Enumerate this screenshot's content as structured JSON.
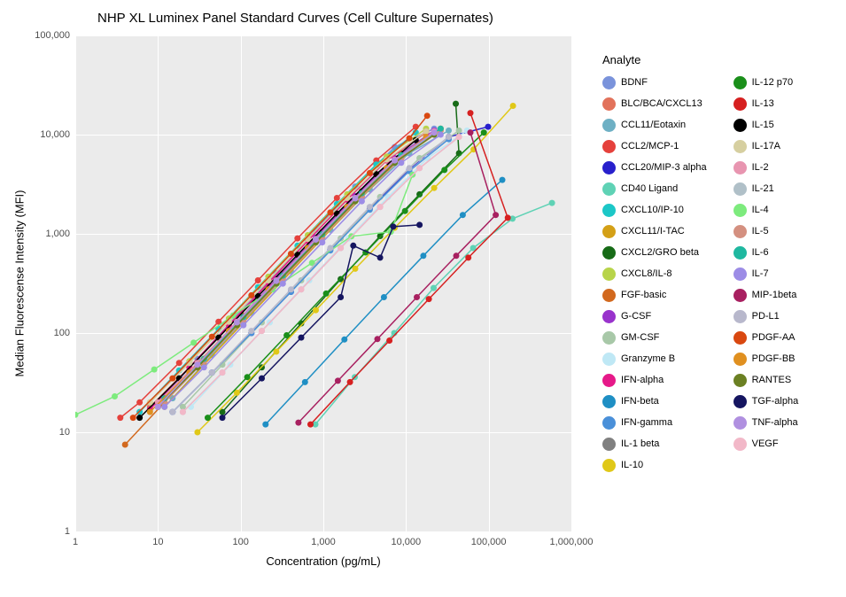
{
  "title": "NHP XL Luminex Panel Standard Curves (Cell Culture Supernates)",
  "xlabel": "Concentration (pg/mL)",
  "ylabel": "Median Fluorescense Intensity (MFI)",
  "legend_title": "Analyte",
  "type": "line+scatter",
  "xscale": "log10",
  "yscale": "log10",
  "xlim": [
    1,
    1000000
  ],
  "ylim": [
    1,
    100000
  ],
  "panel_bg": "#ebebeb",
  "grid_color": "#ffffff",
  "point_radius": 3.5,
  "line_width": 1.5,
  "title_fontsize": 15,
  "label_fontsize": 13,
  "tick_fontsize": 11,
  "legend_fontsize": 11,
  "xticks": [
    {
      "v": 1,
      "label": "1"
    },
    {
      "v": 10,
      "label": "10"
    },
    {
      "v": 100,
      "label": "100"
    },
    {
      "v": 1000,
      "label": "1,000"
    },
    {
      "v": 10000,
      "label": "10,000"
    },
    {
      "v": 100000,
      "label": "100,000"
    },
    {
      "v": 1000000,
      "label": "1,000,000"
    }
  ],
  "yticks": [
    {
      "v": 1,
      "label": "1"
    },
    {
      "v": 10,
      "label": "10"
    },
    {
      "v": 100,
      "label": "100"
    },
    {
      "v": 1000,
      "label": "1,000"
    },
    {
      "v": 10000,
      "label": "10,000"
    },
    {
      "v": 100000,
      "label": "100,000"
    }
  ],
  "legend_columns": [
    [
      "BDNF",
      "BLC/BCA/CXCL13",
      "CCL11/Eotaxin",
      "CCL2/MCP-1",
      "CCL20/MIP-3 alpha",
      "CD40 Ligand",
      "CXCL10/IP-10",
      "CXCL11/I-TAC",
      "CXCL2/GRO beta",
      "CXCL8/IL-8",
      "FGF-basic",
      "G-CSF",
      "GM-CSF",
      "Granzyme B",
      "IFN-alpha",
      "IFN-beta",
      "IFN-gamma",
      "IL-1 beta",
      "IL-10"
    ],
    [
      "IL-12 p70",
      "IL-13",
      "IL-15",
      "IL-17A",
      "IL-2",
      "IL-21",
      "IL-4",
      "IL-5",
      "IL-6",
      "IL-7",
      "MIP-1beta",
      "PD-L1",
      "PDGF-AA",
      "PDGF-BB",
      "RANTES",
      "TGF-alpha",
      "TNF-alpha",
      "VEGF"
    ]
  ],
  "colors": {
    "BDNF": "#7a93db",
    "BLC/BCA/CXCL13": "#e2725b",
    "CCL11/Eotaxin": "#6eb0c4",
    "CCL2/MCP-1": "#e5413c",
    "CCL20/MIP-3 alpha": "#2820cc",
    "CD40 Ligand": "#5fd2b5",
    "CXCL10/IP-10": "#1cc7c7",
    "CXCL11/I-TAC": "#d4a017",
    "CXCL2/GRO beta": "#176b17",
    "CXCL8/IL-8": "#b8d44a",
    "FGF-basic": "#d2691e",
    "G-CSF": "#9933cc",
    "GM-CSF": "#a8c8a8",
    "Granzyme B": "#bfe8f5",
    "IFN-alpha": "#e61989",
    "IFN-beta": "#1f8fc4",
    "IFN-gamma": "#4a90d9",
    "IL-1 beta": "#808080",
    "IL-10": "#e0c818",
    "IL-12 p70": "#1a8f1a",
    "IL-13": "#d62020",
    "IL-15": "#000000",
    "IL-17A": "#d6cfa0",
    "IL-2": "#e895b0",
    "IL-21": "#b0c0c8",
    "IL-4": "#7deb7d",
    "IL-5": "#d49080",
    "IL-6": "#1fb8a0",
    "IL-7": "#9c8ce6",
    "MIP-1beta": "#a82060",
    "PD-L1": "#b8b8cc",
    "PDGF-AA": "#d94810",
    "PDGF-BB": "#e09020",
    "RANTES": "#6b8023",
    "TGF-alpha": "#151560",
    "TNF-alpha": "#b090e0",
    "VEGF": "#f2b8c8"
  },
  "series": {
    "BDNF": [
      [
        10,
        20
      ],
      [
        30,
        55
      ],
      [
        90,
        150
      ],
      [
        270,
        400
      ],
      [
        810,
        1100
      ],
      [
        2430,
        3000
      ],
      [
        7290,
        7500
      ],
      [
        21870,
        11500
      ]
    ],
    "BLC/BCA/CXCL13": [
      [
        8,
        18
      ],
      [
        24,
        45
      ],
      [
        72,
        120
      ],
      [
        216,
        320
      ],
      [
        648,
        850
      ],
      [
        1944,
        2200
      ],
      [
        5832,
        5500
      ],
      [
        17496,
        10500
      ]
    ],
    "CCL11/Eotaxin": [
      [
        15,
        22
      ],
      [
        45,
        60
      ],
      [
        135,
        160
      ],
      [
        405,
        420
      ],
      [
        1215,
        1100
      ],
      [
        3645,
        2800
      ],
      [
        10935,
        6500
      ],
      [
        32805,
        11000
      ]
    ],
    "CCL2/MCP-1": [
      [
        3.5,
        14
      ],
      [
        6,
        20
      ],
      [
        18,
        50
      ],
      [
        54,
        130
      ],
      [
        162,
        340
      ],
      [
        486,
        900
      ],
      [
        1458,
        2300
      ],
      [
        4374,
        5500
      ],
      [
        13122,
        12000
      ]
    ],
    "CCL20/MIP-3 alpha": [
      [
        15,
        16
      ],
      [
        45,
        40
      ],
      [
        135,
        100
      ],
      [
        405,
        260
      ],
      [
        1215,
        700
      ],
      [
        3645,
        1800
      ],
      [
        10935,
        4500
      ],
      [
        32805,
        9500
      ],
      [
        98415,
        12000
      ]
    ],
    "CD40 Ligand": [
      [
        800,
        12
      ],
      [
        2400,
        36
      ],
      [
        7200,
        100
      ],
      [
        21600,
        285
      ],
      [
        64800,
        720
      ],
      [
        194400,
        1420
      ],
      [
        583200,
        2050
      ]
    ],
    "CXCL10/IP-10": [
      [
        6,
        16
      ],
      [
        18,
        42
      ],
      [
        54,
        110
      ],
      [
        162,
        290
      ],
      [
        486,
        760
      ],
      [
        1458,
        2000
      ],
      [
        4374,
        5000
      ],
      [
        13122,
        10500
      ]
    ],
    "CXCL11/I-TAC": [
      [
        12,
        18
      ],
      [
        36,
        48
      ],
      [
        108,
        128
      ],
      [
        324,
        340
      ],
      [
        972,
        900
      ],
      [
        2916,
        2350
      ],
      [
        8748,
        5800
      ],
      [
        26244,
        11000
      ]
    ],
    "CXCL2/GRO beta": [
      [
        60,
        16
      ],
      [
        180,
        45
      ],
      [
        540,
        125
      ],
      [
        1620,
        350
      ],
      [
        4860,
        950
      ],
      [
        14580,
        2500
      ],
      [
        43740,
        6500
      ],
      [
        40000,
        20500
      ]
    ],
    "CXCL8/IL-8": [
      [
        8,
        20
      ],
      [
        24,
        52
      ],
      [
        72,
        140
      ],
      [
        216,
        370
      ],
      [
        648,
        970
      ],
      [
        1944,
        2500
      ],
      [
        5832,
        6000
      ],
      [
        17496,
        11500
      ]
    ],
    "FGF-basic": [
      [
        4,
        7.5
      ],
      [
        12,
        20
      ],
      [
        36,
        55
      ],
      [
        108,
        150
      ],
      [
        324,
        400
      ],
      [
        972,
        1050
      ],
      [
        2916,
        2700
      ],
      [
        8748,
        6500
      ],
      [
        26244,
        11500
      ]
    ],
    "G-CSF": [
      [
        10,
        18
      ],
      [
        30,
        48
      ],
      [
        90,
        130
      ],
      [
        270,
        350
      ],
      [
        810,
        920
      ],
      [
        2430,
        2400
      ],
      [
        7290,
        5800
      ],
      [
        21870,
        11000
      ]
    ],
    "GM-CSF": [
      [
        20,
        18
      ],
      [
        60,
        48
      ],
      [
        180,
        128
      ],
      [
        540,
        340
      ],
      [
        1620,
        900
      ],
      [
        4860,
        2350
      ],
      [
        14580,
        5800
      ],
      [
        43740,
        11000
      ]
    ],
    "Granzyme B": [
      [
        25,
        18
      ],
      [
        75,
        48
      ],
      [
        225,
        128
      ],
      [
        675,
        340
      ],
      [
        2025,
        900
      ],
      [
        6075,
        2350
      ],
      [
        18225,
        5800
      ],
      [
        54675,
        11000
      ]
    ],
    "IFN-alpha": [
      [
        8,
        17
      ],
      [
        24,
        45
      ],
      [
        72,
        120
      ],
      [
        216,
        320
      ],
      [
        648,
        850
      ],
      [
        1944,
        2230
      ],
      [
        5832,
        5500
      ],
      [
        17496,
        10800
      ]
    ],
    "IFN-beta": [
      [
        200,
        12
      ],
      [
        600,
        32
      ],
      [
        1800,
        86
      ],
      [
        5400,
        230
      ],
      [
        16200,
        600
      ],
      [
        48600,
        1550
      ],
      [
        145800,
        3500
      ]
    ],
    "IFN-gamma": [
      [
        15,
        16
      ],
      [
        45,
        40
      ],
      [
        135,
        100
      ],
      [
        405,
        260
      ],
      [
        1215,
        680
      ],
      [
        3645,
        1750
      ],
      [
        10935,
        4300
      ],
      [
        32805,
        9000
      ]
    ],
    "IL-1 beta": [
      [
        10,
        18
      ],
      [
        30,
        45
      ],
      [
        90,
        120
      ],
      [
        270,
        320
      ],
      [
        810,
        840
      ],
      [
        2430,
        2180
      ],
      [
        7290,
        5300
      ],
      [
        21870,
        10000
      ]
    ],
    "IL-10": [
      [
        30,
        10
      ],
      [
        90,
        25
      ],
      [
        270,
        65
      ],
      [
        810,
        170
      ],
      [
        2430,
        445
      ],
      [
        7290,
        1150
      ],
      [
        21870,
        2900
      ],
      [
        65610,
        7100
      ],
      [
        196830,
        19500
      ]
    ],
    "IL-12 p70": [
      [
        40,
        14
      ],
      [
        120,
        36
      ],
      [
        360,
        95
      ],
      [
        1080,
        250
      ],
      [
        3240,
        650
      ],
      [
        9720,
        1700
      ],
      [
        29160,
        4400
      ],
      [
        87480,
        10500
      ]
    ],
    "IL-13": [
      [
        700,
        12
      ],
      [
        2100,
        32
      ],
      [
        6300,
        84
      ],
      [
        18900,
        220
      ],
      [
        56700,
        575
      ],
      [
        170100,
        1450
      ],
      [
        60000,
        16500
      ]
    ],
    "IL-15": [
      [
        6,
        14
      ],
      [
        18,
        35
      ],
      [
        54,
        90
      ],
      [
        162,
        235
      ],
      [
        486,
        615
      ],
      [
        1458,
        1600
      ],
      [
        4374,
        4000
      ],
      [
        13122,
        8800
      ]
    ],
    "IL-17A": [
      [
        8,
        20
      ],
      [
        24,
        50
      ],
      [
        72,
        130
      ],
      [
        216,
        340
      ],
      [
        648,
        890
      ],
      [
        1944,
        2300
      ],
      [
        5832,
        5600
      ],
      [
        17496,
        10800
      ]
    ],
    "IL-2": [
      [
        10,
        20
      ],
      [
        30,
        50
      ],
      [
        90,
        130
      ],
      [
        270,
        340
      ],
      [
        810,
        890
      ],
      [
        2430,
        2300
      ],
      [
        7290,
        5600
      ],
      [
        21870,
        10800
      ]
    ],
    "IL-21": [
      [
        20,
        16
      ],
      [
        60,
        40
      ],
      [
        180,
        105
      ],
      [
        540,
        275
      ],
      [
        1620,
        720
      ],
      [
        4860,
        1870
      ],
      [
        14580,
        4600
      ],
      [
        43740,
        9500
      ]
    ],
    "IL-4": [
      [
        1,
        15
      ],
      [
        3,
        23
      ],
      [
        9,
        43
      ],
      [
        27,
        80
      ],
      [
        81,
        150
      ],
      [
        243,
        275
      ],
      [
        729,
        510
      ],
      [
        2187,
        945
      ],
      [
        6560,
        1050
      ],
      [
        12000,
        3950
      ]
    ],
    "IL-5": [
      [
        12,
        20
      ],
      [
        36,
        52
      ],
      [
        108,
        136
      ],
      [
        324,
        355
      ],
      [
        972,
        925
      ],
      [
        2916,
        2400
      ],
      [
        8748,
        5800
      ],
      [
        26244,
        11000
      ]
    ],
    "IL-6": [
      [
        12,
        22
      ],
      [
        36,
        55
      ],
      [
        108,
        145
      ],
      [
        324,
        380
      ],
      [
        972,
        990
      ],
      [
        2916,
        2570
      ],
      [
        8748,
        6200
      ],
      [
        26244,
        11500
      ]
    ],
    "IL-7": [
      [
        12,
        18
      ],
      [
        36,
        45
      ],
      [
        108,
        120
      ],
      [
        324,
        315
      ],
      [
        972,
        820
      ],
      [
        2916,
        2130
      ],
      [
        8748,
        5200
      ],
      [
        26244,
        10000
      ]
    ],
    "MIP-1beta": [
      [
        500,
        12.5
      ],
      [
        1500,
        33
      ],
      [
        4500,
        87
      ],
      [
        13500,
        230
      ],
      [
        40500,
        600
      ],
      [
        121500,
        1550
      ],
      [
        60000,
        10500
      ]
    ],
    "PD-L1": [
      [
        15,
        16
      ],
      [
        45,
        40
      ],
      [
        135,
        105
      ],
      [
        405,
        275
      ],
      [
        1215,
        720
      ],
      [
        3645,
        1870
      ],
      [
        10935,
        4600
      ],
      [
        32805,
        9500
      ]
    ],
    "PDGF-AA": [
      [
        5,
        14
      ],
      [
        15,
        35
      ],
      [
        45,
        92
      ],
      [
        135,
        240
      ],
      [
        405,
        630
      ],
      [
        1215,
        1640
      ],
      [
        3645,
        4100
      ],
      [
        10935,
        9200
      ],
      [
        18000,
        15500
      ]
    ],
    "PDGF-BB": [
      [
        8,
        16
      ],
      [
        24,
        40
      ],
      [
        72,
        105
      ],
      [
        216,
        275
      ],
      [
        648,
        720
      ],
      [
        1944,
        1870
      ],
      [
        5832,
        4600
      ],
      [
        17496,
        9500
      ]
    ],
    "RANTES": [
      [
        10,
        18
      ],
      [
        30,
        45
      ],
      [
        90,
        120
      ],
      [
        270,
        315
      ],
      [
        810,
        820
      ],
      [
        2430,
        2130
      ],
      [
        7290,
        5200
      ],
      [
        21870,
        10000
      ]
    ],
    "TGF-alpha": [
      [
        60,
        14
      ],
      [
        180,
        35
      ],
      [
        540,
        90
      ],
      [
        1620,
        230
      ],
      [
        2300,
        760
      ],
      [
        4860,
        575
      ],
      [
        7000,
        1180
      ],
      [
        14580,
        1230
      ]
    ],
    "TNF-alpha": [
      [
        10,
        18
      ],
      [
        30,
        48
      ],
      [
        90,
        128
      ],
      [
        270,
        335
      ],
      [
        810,
        875
      ],
      [
        2430,
        2275
      ],
      [
        7290,
        5500
      ],
      [
        21870,
        10500
      ]
    ],
    "VEGF": [
      [
        20,
        16
      ],
      [
        60,
        40
      ],
      [
        180,
        105
      ],
      [
        540,
        275
      ],
      [
        1620,
        720
      ],
      [
        4860,
        1870
      ],
      [
        14580,
        4600
      ],
      [
        43740,
        9500
      ]
    ]
  }
}
